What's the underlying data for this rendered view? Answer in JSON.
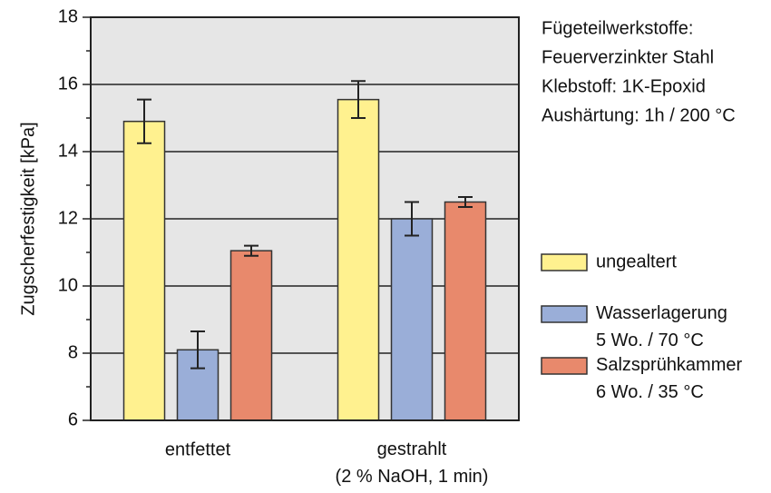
{
  "chart_data": {
    "type": "bar",
    "y_label": "Zugscherfestigkeit [kPa]",
    "annotations": [
      "Fügeteilwerkstoffe:",
      "Feuerverzinkter Stahl",
      "Klebstoff: 1K-Epoxid",
      "Aushärtung: 1h / 200 °C"
    ],
    "categories": [
      "entfettet",
      "gestrahlt\n(2 % NaOH, 1 min)"
    ],
    "series": [
      {
        "name": "ungealtert",
        "color": "#fff18f",
        "values": [
          14.9,
          15.55
        ],
        "errors": [
          0.65,
          0.55
        ]
      },
      {
        "name": "Wasserlagerung\n5 Wo. / 70 °C",
        "color": "#9aaed8",
        "values": [
          8.1,
          12.0
        ],
        "errors": [
          0.55,
          0.5
        ]
      },
      {
        "name": "Salzsprühkammer\n6 Wo. / 35 °C",
        "color": "#e8896c",
        "values": [
          11.05,
          12.5
        ],
        "errors": [
          0.15,
          0.15
        ]
      }
    ],
    "ylim": [
      6,
      18
    ],
    "yticks": [
      6,
      8,
      10,
      12,
      14,
      16,
      18
    ],
    "grid": true
  }
}
